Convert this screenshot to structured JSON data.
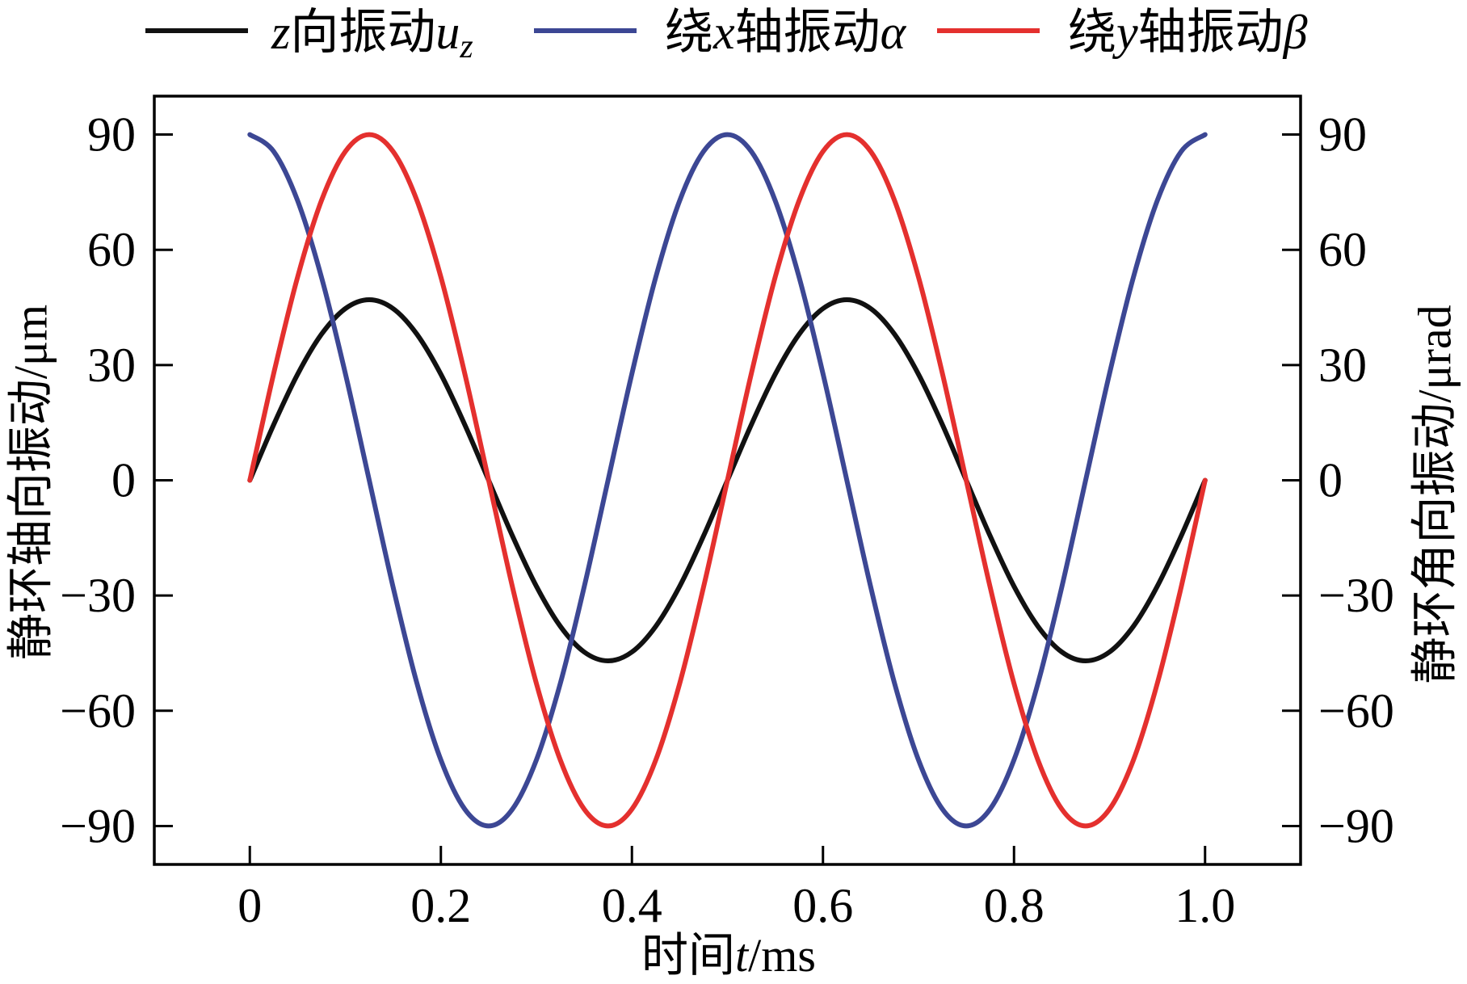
{
  "chart_data": {
    "type": "line",
    "xlabel": "时间t/ms",
    "xlabel_parts": [
      {
        "text": "时间"
      },
      {
        "text": "t",
        "italic": true
      },
      {
        "text": "/ms"
      }
    ],
    "ylabel": "静环轴向振动/μm",
    "y2label": "静环角向振动/μrad",
    "xlim": [
      -0.1,
      1.1
    ],
    "ylim": [
      -100,
      100
    ],
    "xticks": [
      0,
      0.2,
      0.4,
      0.6,
      0.8,
      1.0
    ],
    "xtick_labels": [
      "0",
      "0.2",
      "0.4",
      "0.6",
      "0.8",
      "1.0"
    ],
    "yticks": [
      90,
      60,
      30,
      0,
      -30,
      -60,
      -90
    ],
    "ytick_labels": [
      "90",
      "60",
      "30",
      "0",
      "−30",
      "−60",
      "−90"
    ],
    "grid": false,
    "legend_position": "top",
    "x": [
      0,
      0.025,
      0.05,
      0.075,
      0.1,
      0.125,
      0.15,
      0.175,
      0.2,
      0.225,
      0.25,
      0.275,
      0.3,
      0.325,
      0.35,
      0.375,
      0.4,
      0.425,
      0.45,
      0.475,
      0.5,
      0.525,
      0.55,
      0.575,
      0.6,
      0.625,
      0.65,
      0.675,
      0.7,
      0.725,
      0.75,
      0.775,
      0.8,
      0.825,
      0.85,
      0.875,
      0.9,
      0.925,
      0.95,
      0.975,
      1.0
    ],
    "series": [
      {
        "name": "z向振动uz",
        "name_parts": [
          {
            "text": "z",
            "italic": true
          },
          {
            "text": "向振动"
          },
          {
            "text": "u",
            "italic": true
          },
          {
            "text": "z",
            "italic": true,
            "sub": true
          }
        ],
        "color": "#111111",
        "values": [
          0,
          14.5,
          27.6,
          38.0,
          44.7,
          47.0,
          44.7,
          38.0,
          27.6,
          14.5,
          0,
          -14.5,
          -27.6,
          -38.0,
          -44.7,
          -47.0,
          -44.7,
          -38.0,
          -27.6,
          -14.5,
          0,
          14.5,
          27.6,
          38.0,
          44.7,
          47.0,
          44.7,
          38.0,
          27.6,
          14.5,
          0,
          -14.5,
          -27.6,
          -38.0,
          -44.7,
          -47.0,
          -44.7,
          -38.0,
          -27.6,
          -14.5,
          0
        ]
      },
      {
        "name": "绕x轴振动α",
        "name_parts": [
          {
            "text": "绕"
          },
          {
            "text": "x",
            "italic": true
          },
          {
            "text": "轴振动"
          },
          {
            "text": "α",
            "italic": true
          }
        ],
        "color": "#3c4794",
        "values": [
          90,
          85.6,
          72.8,
          52.9,
          27.8,
          0,
          -27.8,
          -52.9,
          -72.8,
          -85.6,
          -90,
          -85.6,
          -72.8,
          -52.9,
          -27.8,
          0,
          27.8,
          52.9,
          72.8,
          85.6,
          90,
          85.6,
          72.8,
          52.9,
          27.8,
          0,
          -27.8,
          -52.9,
          -72.8,
          -85.6,
          -90,
          -85.6,
          -72.8,
          -52.9,
          -27.8,
          0,
          27.8,
          52.9,
          72.8,
          85.6,
          90
        ]
      },
      {
        "name": "绕y轴振动β",
        "name_parts": [
          {
            "text": "绕"
          },
          {
            "text": "y",
            "italic": true
          },
          {
            "text": "轴振动"
          },
          {
            "text": "β",
            "italic": true
          }
        ],
        "color": "#e4302e",
        "values": [
          0,
          27.8,
          52.9,
          72.8,
          85.6,
          90,
          85.6,
          72.8,
          52.9,
          27.8,
          0,
          -27.8,
          -52.9,
          -72.8,
          -85.6,
          -90,
          -85.6,
          -72.8,
          -52.9,
          -27.8,
          0,
          27.8,
          52.9,
          72.8,
          85.6,
          90,
          85.6,
          72.8,
          52.9,
          27.8,
          0,
          -27.8,
          -52.9,
          -72.8,
          -85.6,
          -90,
          -85.6,
          -72.8,
          -52.9,
          -27.8,
          0
        ]
      }
    ]
  }
}
